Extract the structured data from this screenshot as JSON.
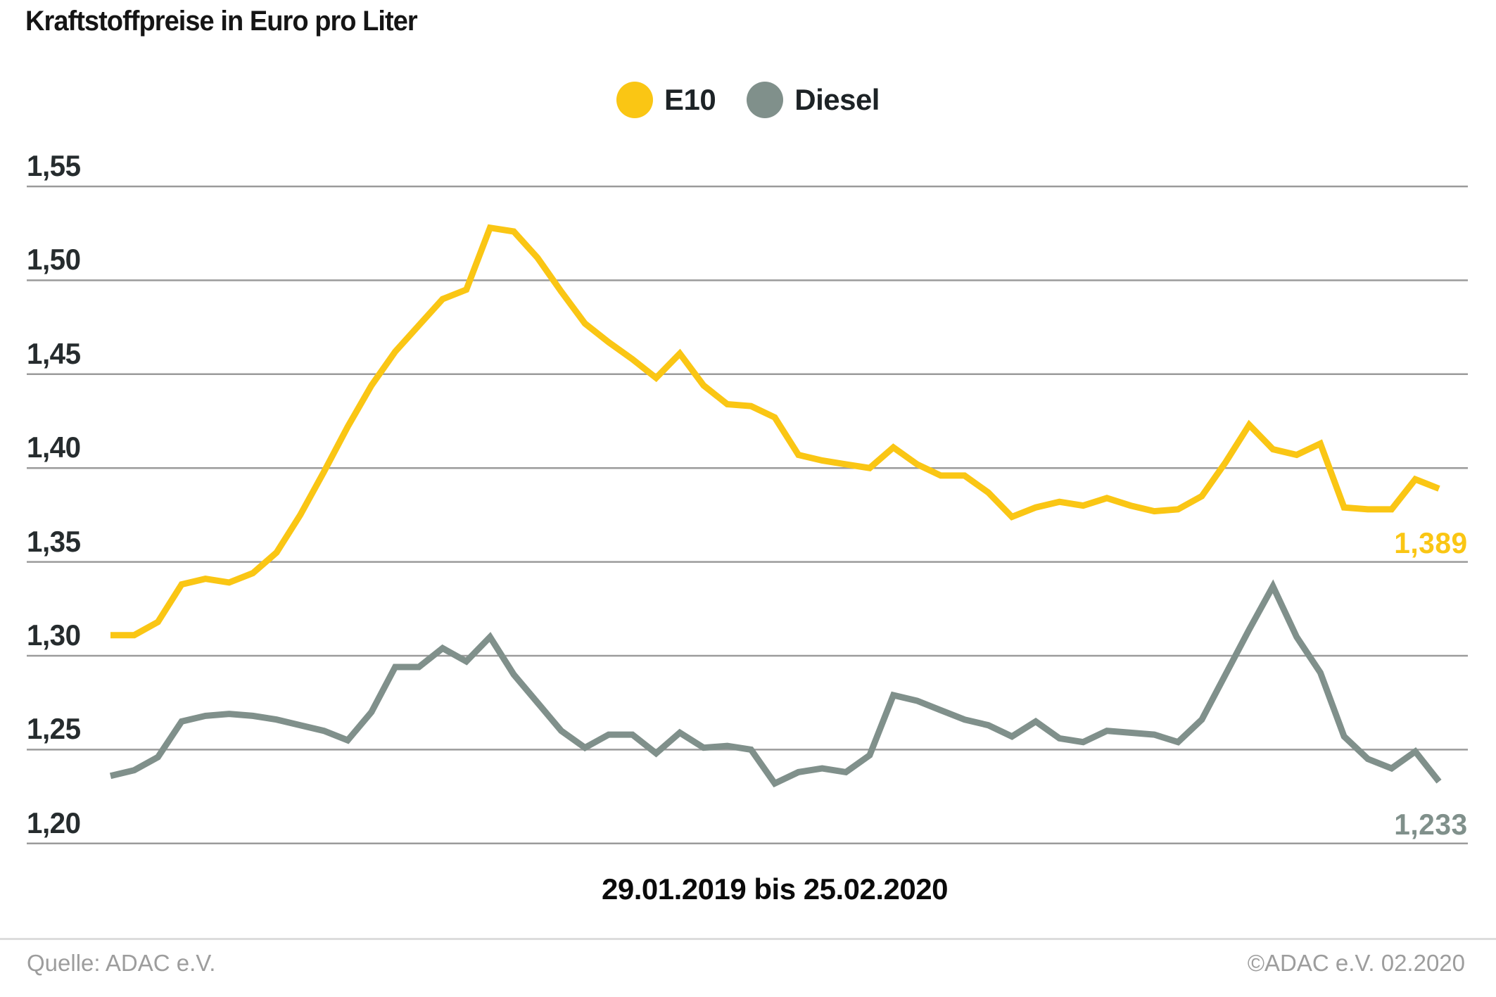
{
  "chart_data": {
    "type": "line",
    "title": "Kraftstoffpreise in Euro pro Liter",
    "x_range_label": "29.01.2019 bis 25.02.2020",
    "x_start": "29.01.2019",
    "x_end": "25.02.2020",
    "x_interval": "weekly",
    "ylim": [
      1.2,
      1.55
    ],
    "grid": "horizontal",
    "legend_position": "top-center",
    "y_ticks": [
      {
        "label": "1,55",
        "value": 1.55
      },
      {
        "label": "1,50",
        "value": 1.5
      },
      {
        "label": "1,45",
        "value": 1.45
      },
      {
        "label": "1,40",
        "value": 1.4
      },
      {
        "label": "1,35",
        "value": 1.35
      },
      {
        "label": "1,30",
        "value": 1.3
      },
      {
        "label": "1,25",
        "value": 1.25
      },
      {
        "label": "1,20",
        "value": 1.2
      }
    ],
    "series": [
      {
        "name": "E10",
        "color": "#FAC614",
        "end_label": "1,389",
        "final_value": 1.389,
        "values": [
          1.311,
          1.311,
          1.318,
          1.338,
          1.341,
          1.339,
          1.344,
          1.355,
          1.375,
          1.398,
          1.422,
          1.444,
          1.462,
          1.476,
          1.49,
          1.495,
          1.528,
          1.526,
          1.512,
          1.494,
          1.477,
          1.467,
          1.458,
          1.448,
          1.461,
          1.444,
          1.434,
          1.433,
          1.427,
          1.407,
          1.404,
          1.402,
          1.4,
          1.411,
          1.402,
          1.396,
          1.396,
          1.387,
          1.374,
          1.379,
          1.382,
          1.38,
          1.384,
          1.38,
          1.377,
          1.378,
          1.385,
          1.403,
          1.423,
          1.41,
          1.407,
          1.413,
          1.379,
          1.378,
          1.378,
          1.394,
          1.389
        ]
      },
      {
        "name": "Diesel",
        "color": "#80908B",
        "end_label": "1,233",
        "final_value": 1.233,
        "values": [
          1.236,
          1.239,
          1.246,
          1.265,
          1.268,
          1.269,
          1.268,
          1.266,
          1.263,
          1.26,
          1.255,
          1.27,
          1.294,
          1.294,
          1.304,
          1.297,
          1.31,
          1.29,
          1.275,
          1.26,
          1.251,
          1.258,
          1.258,
          1.248,
          1.259,
          1.251,
          1.252,
          1.25,
          1.232,
          1.238,
          1.24,
          1.238,
          1.247,
          1.279,
          1.276,
          1.271,
          1.266,
          1.263,
          1.257,
          1.265,
          1.256,
          1.254,
          1.26,
          1.259,
          1.258,
          1.254,
          1.266,
          1.29,
          1.314,
          1.337,
          1.31,
          1.291,
          1.257,
          1.245,
          1.24,
          1.249,
          1.233
        ]
      }
    ],
    "grid_color": "#9b9b9b"
  },
  "footer": {
    "source": "Quelle: ADAC e.V.",
    "copyright": "©ADAC e.V.  02.2020"
  }
}
